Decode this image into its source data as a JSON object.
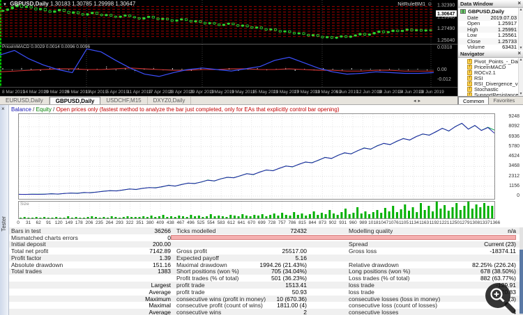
{
  "icons": {
    "dropdown": "▼",
    "close": "×",
    "up": "▲",
    "down": "▼",
    "left": "◂",
    "right": "▸",
    "smiley": "☺"
  },
  "chart": {
    "symbol_title": "GBPUSD,Daily",
    "ohlc": "1.30183 1.30785 1.29998 1.30647",
    "ea_label": "NitRuleBM1",
    "price_axis": [
      "1.32390",
      "1.29940",
      "1.27490",
      "1.25040"
    ],
    "current_price": "1.30647",
    "pivot_levels": [
      1.321,
      1.3153,
      1.3096,
      1.3039,
      1.2982,
      1.2925,
      1.2868,
      1.2811,
      1.2754,
      1.2697,
      1.264,
      1.2583
    ],
    "separators_x": [
      124,
      290,
      462,
      618
    ],
    "closes": [
      1.313,
      1.316,
      1.3205,
      1.3245,
      1.319,
      1.3215,
      1.318,
      1.314,
      1.317,
      1.312,
      1.309,
      1.312,
      1.315,
      1.311,
      1.307,
      1.31,
      1.306,
      1.303,
      1.306,
      1.309,
      1.305,
      1.302,
      1.3045,
      1.301,
      1.2985,
      1.301,
      1.3035,
      1.3,
      1.2975,
      1.295,
      1.298,
      1.3005,
      1.297,
      1.294,
      1.2965,
      1.2935,
      1.2905,
      1.293,
      1.2955,
      1.292,
      1.289,
      1.2915,
      1.288,
      1.285,
      1.2875,
      1.2845,
      1.2815,
      1.284,
      1.2865,
      1.283,
      1.28,
      1.2825,
      1.279,
      1.276,
      1.2785,
      1.275,
      1.272,
      1.2745,
      1.271,
      1.268,
      1.2705,
      1.267,
      1.264,
      1.2665,
      1.263,
      1.26,
      1.2625,
      1.259,
      1.256,
      1.2585,
      1.255,
      1.2575,
      1.26,
      1.257,
      1.2595,
      1.262,
      1.265,
      1.2615,
      1.264,
      1.267,
      1.27,
      1.2665,
      1.269,
      1.272,
      1.269,
      1.2715,
      1.274,
      1.2705,
      1.273,
      1.27,
      1.2725,
      1.271
    ],
    "dates": [
      "8 Mar 2019",
      "14 Mar 2019",
      "20 Mar 2019",
      "26 Mar 2019",
      "1 Apr 2019",
      "5 Apr 2019",
      "11 Apr 2019",
      "17 Apr 2019",
      "23 Apr 2019",
      "29 Apr 2019",
      "3 May 2019",
      "9 May 2019",
      "15 May 2019",
      "21 May 2019",
      "27 May 2019",
      "31 May 2019",
      "6 Jun 2019",
      "12 Jun 2019",
      "18 Jun 2019",
      "24 Jun 2019",
      "28 Jun 2019"
    ],
    "macd": {
      "label": "PriceInMACD 0.0029 0.0014 0.0096 0.0096",
      "axis": [
        "0.0318",
        "0.00",
        "-0.012"
      ],
      "blue": [
        0.019,
        0.025,
        0.014,
        0.006,
        0.0,
        -0.004,
        0.027,
        0.023,
        0.012,
        0.002,
        -0.006,
        -0.009,
        -0.004,
        0.0,
        0.002,
        0.0,
        -0.002,
        0.001,
        0.004,
        0.012,
        0.016,
        0.009,
        0.002,
        -0.003,
        -0.006,
        -0.005,
        -0.003,
        -0.004,
        -0.005,
        -0.005,
        -0.004
      ],
      "red": [
        -0.003,
        -0.002,
        -0.001,
        0.0,
        0.001,
        0.001,
        0.0,
        0.0,
        0.001,
        0.002,
        0.001,
        0.0,
        -0.001,
        -0.001,
        0.0,
        0.0,
        0.001,
        0.001,
        0.0,
        0.0,
        0.001,
        0.0,
        -0.001,
        -0.001,
        -0.002,
        -0.002,
        -0.001,
        -0.001,
        -0.002,
        -0.002,
        -0.002
      ],
      "hist": [
        0.002,
        -0.001,
        0.003,
        0.001,
        -0.002,
        0.004,
        0.002,
        -0.001,
        0.003,
        -0.002,
        0.001,
        0.004,
        -0.001,
        0.002,
        -0.003,
        0.001,
        0.003,
        -0.001,
        0.002,
        0.001,
        -0.002,
        0.003,
        0.001,
        -0.001,
        0.002,
        -0.002,
        0.001,
        0.002,
        -0.001,
        0.001,
        0.003,
        -0.002,
        0.001,
        -0.001,
        0.002,
        0.001,
        -0.001,
        0.002,
        -0.001,
        0.001,
        -0.002,
        0.001,
        0.001,
        -0.001,
        0.001,
        -0.001
      ]
    }
  },
  "chart_tabs": {
    "items": [
      "EURUSD,Daily",
      "GBPUSD,Daily",
      "USDCHF,M15",
      "DXYZ0,Daily"
    ],
    "active": 1
  },
  "data_window": {
    "title": "Data Window",
    "symbol": "GBPUSD,Daily",
    "rows": [
      [
        "Date",
        "2019.07.03"
      ],
      [
        "Open",
        "1.25917"
      ],
      [
        "High",
        "1.25991"
      ],
      [
        "Low",
        "1.25561"
      ],
      [
        "Close",
        "1.25733"
      ],
      [
        "Volume",
        "63431"
      ]
    ]
  },
  "navigator": {
    "title": "Navigator",
    "items": [
      "Pivot_Points_-_Daily_s",
      "PriceInMACD",
      "ROCv2.1",
      "RSI",
      "RSI_Divergence_v2",
      "Stochastic",
      "SupportResistance"
    ],
    "tabs": [
      "Common",
      "Favorites"
    ],
    "active_tab": 0
  },
  "tester": {
    "side_label": "Tester",
    "banner": {
      "balance": "Balance",
      "equity": "Equity",
      "sep": " / ",
      "note": "Open prices only (fastest method to analyze the bar just completed, only for EAs that explicitly control bar opening)"
    },
    "graph": {
      "size_label": "Size",
      "y_ticks": [
        9248,
        8092,
        6936,
        5780,
        4624,
        3468,
        2312,
        1156,
        0
      ],
      "x_ticks": [
        0,
        31,
        62,
        91,
        120,
        149,
        178,
        206,
        235,
        264,
        293,
        322,
        351,
        380,
        409,
        438,
        467,
        496,
        525,
        554,
        583,
        612,
        641,
        670,
        699,
        728,
        757,
        786,
        815,
        844,
        873,
        902,
        931,
        960,
        989,
        1018,
        1047,
        1076,
        1105,
        1134,
        1163,
        1192,
        1221,
        1250,
        1279,
        1308,
        1337,
        1366
      ],
      "balance": [
        200,
        200,
        210,
        205,
        230,
        260,
        240,
        300,
        360,
        320,
        420,
        390,
        480,
        560,
        640,
        600,
        720,
        820,
        780,
        900,
        1000,
        960,
        1100,
        1250,
        1180,
        1350,
        1520,
        1460,
        1650,
        1850,
        1780,
        2000,
        2200,
        2130,
        2380,
        2600,
        2520,
        2800,
        3050,
        2950,
        3250,
        3500,
        3420,
        3700,
        3980,
        3880,
        4200,
        4500,
        4400,
        4750,
        5050,
        4920,
        5300,
        5600,
        5480,
        5850,
        6150,
        6000,
        6400,
        6700,
        6550,
        6936,
        7250,
        7100,
        7500,
        7900,
        7600,
        8100,
        8500,
        7800,
        8250,
        7650,
        8000,
        7343
      ],
      "equity": [
        210,
        195,
        220,
        215,
        220,
        280,
        230,
        320,
        350,
        340,
        400,
        410,
        470,
        580,
        620,
        620,
        700,
        840,
        760,
        920,
        980,
        980,
        1080,
        1270,
        1160,
        1370,
        1500,
        1480,
        1630,
        1870,
        1760,
        2020,
        2180,
        2150,
        2360,
        2620,
        2500,
        2820,
        3030,
        2970,
        3230,
        3520,
        3400,
        3720,
        3960,
        3900,
        4180,
        4520,
        4380,
        4770,
        5030,
        4940,
        5280,
        5620,
        5460,
        5870,
        6130,
        6020,
        6380,
        6720,
        6530,
        6956,
        7230,
        7120,
        7480,
        7920,
        7580,
        8120,
        8480,
        7820,
        8230,
        7670,
        8020,
        7700
      ],
      "sizes": [
        1,
        2,
        1,
        1,
        2,
        1,
        2,
        1,
        1,
        2,
        1,
        1,
        3,
        1,
        2,
        1,
        1,
        2,
        3,
        2,
        1,
        2,
        1,
        3,
        2,
        1,
        2,
        3,
        2,
        2,
        2,
        3,
        2,
        4,
        2,
        3,
        5,
        2,
        3,
        2,
        4,
        3,
        2,
        5,
        3,
        4,
        2,
        3,
        6,
        3,
        4,
        3,
        2,
        5,
        4,
        3,
        6,
        4,
        3,
        5,
        4,
        6,
        3,
        5,
        7,
        4,
        8,
        5,
        4,
        9,
        5,
        7,
        4,
        6,
        10,
        5,
        8,
        6,
        12,
        7,
        5,
        9,
        14,
        6,
        8,
        16,
        7,
        10,
        6,
        9,
        12,
        8,
        15,
        10,
        18,
        9,
        13,
        20,
        11,
        16,
        9,
        22,
        12,
        18,
        10,
        24,
        14,
        19,
        11,
        16,
        22,
        12,
        18,
        24,
        14,
        20,
        16,
        22,
        18,
        18
      ],
      "colors": {
        "balance": "#2020a8",
        "equity": "#00a050",
        "size": "#00b000"
      }
    },
    "report": {
      "rows": [
        {
          "a": [
            "Bars in test",
            "36266"
          ],
          "b": [
            "Ticks modelled",
            "72432"
          ],
          "c": [
            "Modelling quality",
            "n/a"
          ]
        },
        {
          "a": [
            "Mismatched charts errors",
            "0"
          ],
          "quality_bar": true
        },
        {
          "a": [
            "Initial deposit",
            "200.00"
          ],
          "b": [
            "",
            ""
          ],
          "c": [
            "Spread",
            "Current (23)"
          ]
        },
        {
          "a": [
            "Total net profit",
            "7142.89"
          ],
          "b": [
            "Gross profit",
            "25517.00"
          ],
          "c": [
            "Gross loss",
            "-18374.11"
          ]
        },
        {
          "a": [
            "Profit factor",
            "1.39"
          ],
          "b": [
            "Expected payoff",
            "5.16"
          ],
          "c": [
            "",
            ""
          ]
        },
        {
          "a": [
            "Absolute drawdown",
            "151.16"
          ],
          "b": [
            "Maximal drawdown",
            "1994.26 (21.43%)"
          ],
          "c": [
            "Relative drawdown",
            "82.25% (226.24)"
          ]
        },
        {
          "a": [
            "Total trades",
            "1383"
          ],
          "b": [
            "Short positions (won %)",
            "705 (34.04%)"
          ],
          "c": [
            "Long positions (won %)",
            "678 (38.50%)"
          ]
        },
        {
          "a": [
            "",
            ""
          ],
          "b": [
            "Profit trades (% of total)",
            "501 (36.23%)"
          ],
          "c": [
            "Loss trades (% of total)",
            "882 (63.77%)"
          ]
        },
        {
          "a": [
            "",
            "Largest"
          ],
          "b": [
            "profit trade",
            "1513.41"
          ],
          "c": [
            "loss trade",
            "-129.91"
          ]
        },
        {
          "a": [
            "",
            "Average"
          ],
          "b": [
            "profit trade",
            "50.93"
          ],
          "c": [
            "loss trade",
            "-20.83"
          ]
        },
        {
          "a": [
            "",
            "Maximum"
          ],
          "b": [
            "consecutive wins (profit in money)",
            "10 (670.36)"
          ],
          "c": [
            "consecutive losses (loss in money)",
            "(3)"
          ]
        },
        {
          "a": [
            "",
            "Maximal"
          ],
          "b": [
            "consecutive profit (count of wins)",
            "1811.00 (4)"
          ],
          "c": [
            "consecutive loss (count of losses)",
            ""
          ]
        },
        {
          "a": [
            "",
            "Average"
          ],
          "b": [
            "consecutive wins",
            "2"
          ],
          "c": [
            "consecutive losses",
            "4"
          ]
        }
      ]
    }
  }
}
